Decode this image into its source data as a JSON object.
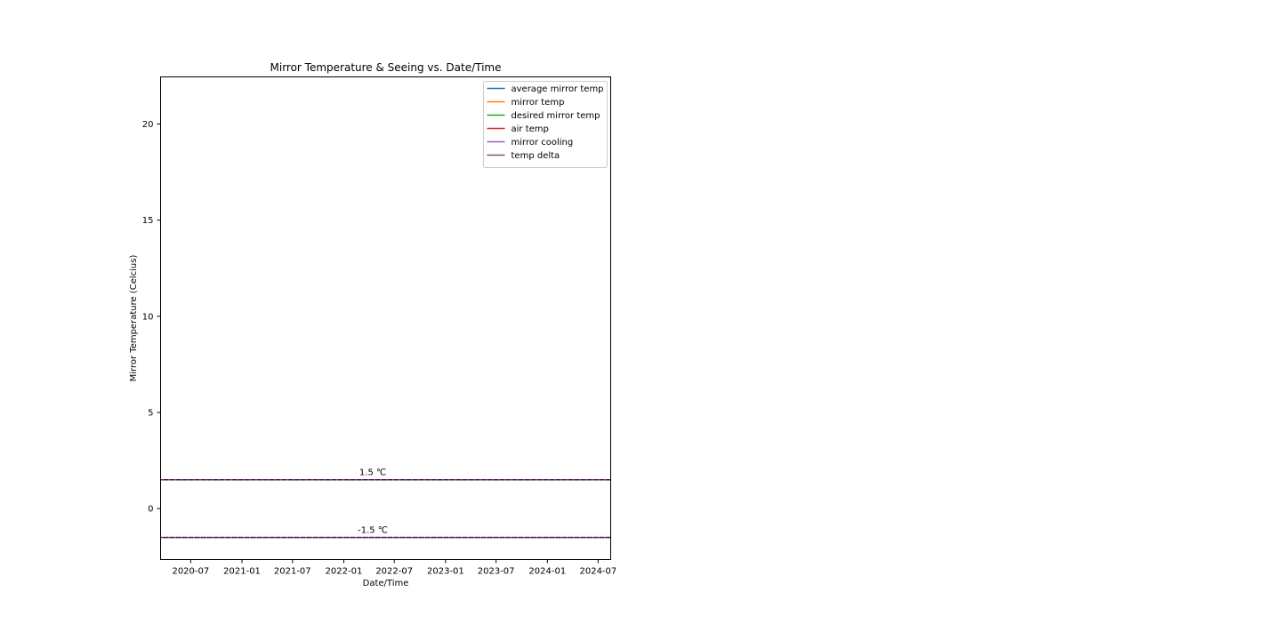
{
  "chart_data": {
    "type": "line",
    "title": "Mirror Temperature & Seeing vs. Date/Time",
    "xlabel": "Date/Time",
    "ylabel": "Mirror Temperature (Celcius)",
    "x_ticks": [
      "2020-07",
      "2021-01",
      "2021-07",
      "2022-01",
      "2022-07",
      "2023-01",
      "2023-07",
      "2024-01",
      "2024-07"
    ],
    "xlim": [
      "2020-03-15",
      "2024-08-15"
    ],
    "y_ticks": [
      0,
      5,
      10,
      15,
      20
    ],
    "ylim": [
      -2.65,
      22.45
    ],
    "grid": false,
    "legend_position": "top-right",
    "series": [
      {
        "name": "average mirror temp",
        "color": "#1f77b4",
        "values": []
      },
      {
        "name": "mirror temp",
        "color": "#ff7f0e",
        "values": []
      },
      {
        "name": "desired mirror temp",
        "color": "#2ca02c",
        "values": []
      },
      {
        "name": "air temp",
        "color": "#d62728",
        "values": []
      },
      {
        "name": "mirror cooling",
        "color": "#9467bd",
        "values": []
      },
      {
        "name": "temp delta",
        "color": "#8c564b",
        "values": []
      }
    ],
    "reference_lines": [
      {
        "y": 1.5,
        "label": "1.5 ℃",
        "label_x": "2022-04-15",
        "style": "dashed",
        "colors": [
          "#d62728",
          "#1f1f6e"
        ]
      },
      {
        "y": -1.5,
        "label": "-1.5 ℃",
        "label_x": "2022-04-15",
        "style": "dashed",
        "colors": [
          "#d62728",
          "#1f1f6e"
        ]
      }
    ]
  }
}
